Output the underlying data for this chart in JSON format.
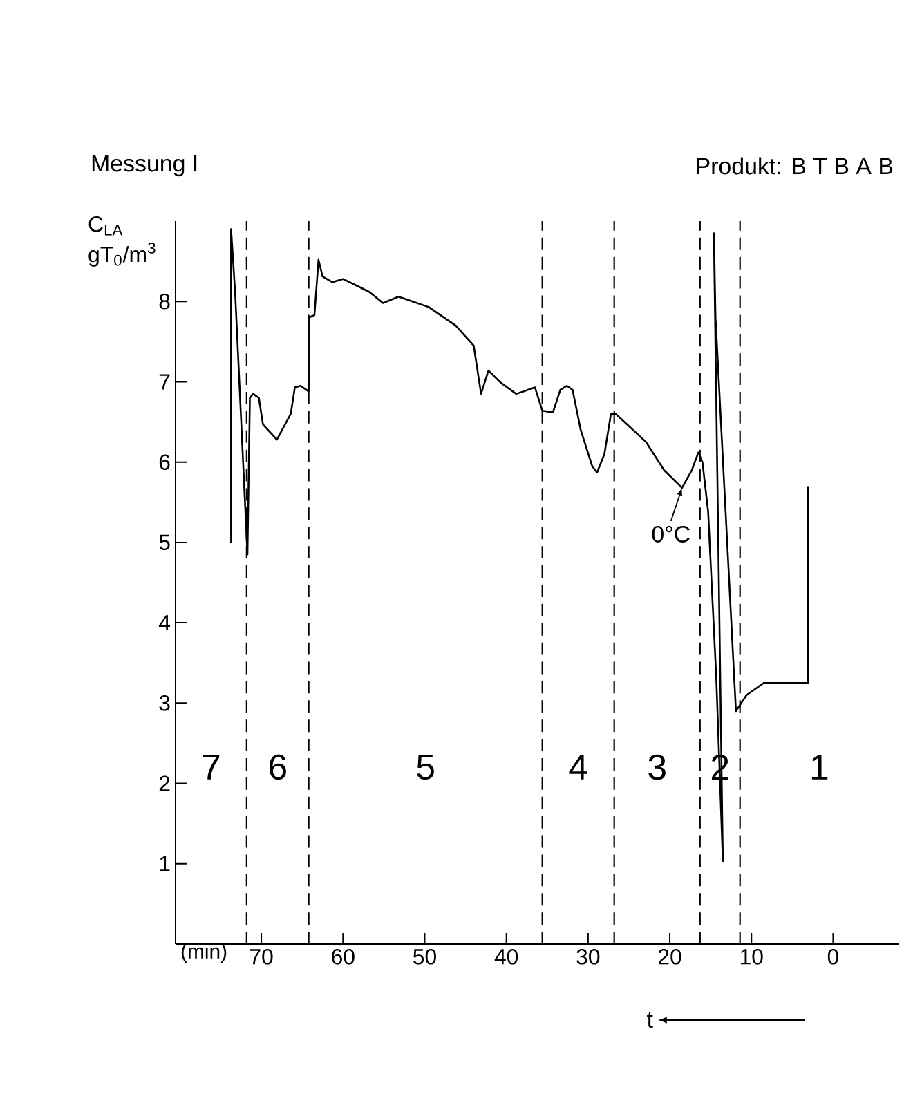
{
  "chart_data": {
    "type": "line",
    "title": "Messung I",
    "subtitle": "Produkt: B T B A B",
    "ylabel": "C$_{LA}$ gT$_{0}$/m$^{3}$",
    "xlabel": "(min)",
    "xlim": [
      80.5,
      -8
    ],
    "ylim": [
      0,
      9
    ],
    "xticks": [
      70,
      60,
      50,
      40,
      30,
      20,
      10,
      0
    ],
    "yticks": [
      1,
      2,
      3,
      4,
      5,
      6,
      7,
      8
    ],
    "marker": "none",
    "line_style": "solid",
    "grid": false,
    "series": [
      {
        "color": "#000000",
        "x": [
          73.7,
          73.7,
          73.2,
          71.7,
          71.4,
          71.0,
          70.3,
          69.8,
          68.1,
          66.4,
          65.9,
          65.2,
          64.2,
          64.2,
          63.5,
          63.0,
          62.5,
          61.3,
          60.0,
          56.8,
          55.1,
          53.2,
          49.5,
          46.2,
          44.0,
          43.1,
          42.2,
          40.7,
          38.8,
          36.5,
          35.6,
          34.3,
          33.4,
          32.6,
          31.9,
          30.9,
          29.5,
          28.9,
          28.0,
          27.2,
          26.6,
          22.9,
          20.7,
          18.5,
          17.3,
          16.5,
          16.0,
          15.3,
          14.3,
          13.5,
          14.6,
          14.4,
          11.9,
          10.6,
          8.5,
          3.1,
          3.1
        ],
        "values": [
          5.0,
          8.9,
          8.1,
          4.85,
          6.8,
          6.85,
          6.8,
          6.47,
          6.28,
          6.6,
          6.93,
          6.95,
          6.88,
          7.8,
          7.83,
          8.52,
          8.31,
          8.24,
          8.28,
          8.12,
          7.98,
          8.06,
          7.93,
          7.7,
          7.45,
          6.85,
          7.14,
          6.99,
          6.85,
          6.93,
          6.64,
          6.62,
          6.9,
          6.95,
          6.9,
          6.4,
          5.95,
          5.87,
          6.1,
          6.6,
          6.6,
          6.25,
          5.9,
          5.68,
          5.9,
          6.12,
          6.0,
          5.38,
          3.3,
          1.03,
          8.85,
          7.8,
          2.9,
          3.1,
          3.25,
          3.25,
          5.7
        ]
      }
    ],
    "ref_lines": [
      {
        "axis": "x",
        "value": 71.8,
        "line_style": "dashed"
      },
      {
        "axis": "x",
        "value": 64.2,
        "line_style": "dashed"
      },
      {
        "axis": "x",
        "value": 35.6,
        "line_style": "dashed"
      },
      {
        "axis": "x",
        "value": 26.8,
        "line_style": "dashed"
      },
      {
        "axis": "x",
        "value": 16.3,
        "line_style": "dashed"
      },
      {
        "axis": "x",
        "value": 11.4,
        "line_style": "dashed"
      }
    ],
    "annotations": [
      "7",
      "6",
      "5",
      "4",
      "3",
      "2",
      "1",
      "t",
      {
        "text": "0°C",
        "x": 18.5,
        "y": 5.68
      }
    ]
  }
}
